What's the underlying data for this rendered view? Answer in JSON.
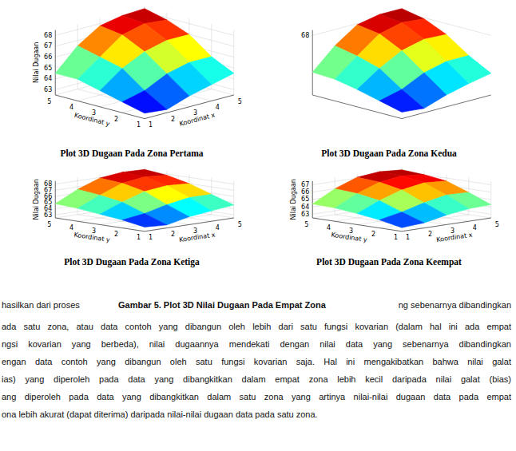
{
  "chart_data": [
    {
      "type": "surface",
      "title": "Plot 3D Dugaan Pada Zona Pertama",
      "x_label": "Koordinat x",
      "y_label": "Koordinat y",
      "z_label": "Nilai Dugaan",
      "grid": true,
      "x": [
        1,
        2,
        3,
        4,
        5
      ],
      "y": [
        1,
        2,
        3,
        4,
        5
      ],
      "z": [
        [
          63.0,
          62.8,
          63.5,
          64.0,
          64.5
        ],
        [
          63.5,
          64.0,
          65.0,
          65.5,
          65.5
        ],
        [
          64.0,
          65.5,
          66.5,
          67.0,
          67.0
        ],
        [
          64.5,
          66.0,
          67.5,
          68.0,
          67.8
        ],
        [
          64.5,
          66.5,
          67.8,
          68.2,
          68.3
        ]
      ],
      "xlim": [
        1,
        5
      ],
      "ylim": [
        1,
        5
      ],
      "zlim": [
        62.5,
        68.5
      ],
      "xticks": [
        1,
        2,
        3,
        4,
        5
      ],
      "yticks": [
        1,
        2,
        3,
        4,
        5
      ],
      "zticks": [
        63,
        64,
        65,
        66,
        67,
        68
      ]
    },
    {
      "type": "surface",
      "title": "Plot 3D Dugaan Pada Zona Kedua",
      "grid": true,
      "x": [
        1,
        2,
        3,
        4,
        5
      ],
      "y": [
        1,
        2,
        3,
        4,
        5
      ],
      "z": [
        [
          63.1,
          62.9,
          63.6,
          64.1,
          64.5
        ],
        [
          63.6,
          64.1,
          65.1,
          65.6,
          65.6
        ],
        [
          64.1,
          65.5,
          66.6,
          67.1,
          67.0
        ],
        [
          64.5,
          66.1,
          67.6,
          68.1,
          67.9
        ],
        [
          64.6,
          66.5,
          67.9,
          68.3,
          68.3
        ]
      ],
      "xlim": [
        1,
        5
      ],
      "ylim": [
        1,
        5
      ],
      "zlim": [
        62.5,
        68.5
      ],
      "xticks": [],
      "yticks": [],
      "zticks": [
        68
      ]
    },
    {
      "type": "surface",
      "title": "Plot 3D Dugaan Pada Zona Ketiga",
      "x_label": "Koordinat x",
      "y_label": "Koordinat y",
      "z_label": "Nilai Dugaan",
      "grid": true,
      "x": [
        1,
        2,
        3,
        4,
        5
      ],
      "y": [
        1,
        2,
        3,
        4,
        5
      ],
      "z": [
        [
          63.2,
          63.0,
          63.8,
          64.2,
          64.6
        ],
        [
          63.8,
          64.3,
          65.2,
          65.8,
          65.8
        ],
        [
          64.2,
          65.6,
          66.8,
          67.2,
          67.0
        ],
        [
          64.6,
          66.2,
          67.6,
          68.1,
          67.8
        ],
        [
          64.8,
          66.6,
          67.9,
          68.3,
          68.2
        ]
      ],
      "xlim": [
        1,
        5
      ],
      "ylim": [
        1,
        5
      ],
      "zlim": [
        62.5,
        68.5
      ],
      "xticks": [
        1,
        2,
        3,
        4,
        5
      ],
      "yticks": [
        1,
        2,
        3,
        4,
        5
      ],
      "zticks": [
        63,
        64,
        65,
        66,
        67,
        68
      ]
    },
    {
      "type": "surface",
      "title": "Plot 3D Dugaan Pada Zona Keempat",
      "x_label": "Koordinat x",
      "y_label": "Koordinat y",
      "z_label": "Nilai Dugaan",
      "grid": true,
      "x": [
        1,
        2,
        3,
        4,
        5
      ],
      "y": [
        1,
        2,
        3,
        4,
        5
      ],
      "z": [
        [
          63.0,
          63.2,
          63.8,
          64.2,
          64.3
        ],
        [
          63.6,
          64.2,
          65.0,
          65.6,
          65.5
        ],
        [
          64.0,
          65.3,
          66.3,
          66.8,
          66.6
        ],
        [
          64.3,
          65.8,
          66.9,
          67.3,
          67.0
        ],
        [
          64.4,
          66.0,
          67.1,
          67.4,
          67.2
        ]
      ],
      "xlim": [
        1,
        5
      ],
      "ylim": [
        1,
        5
      ],
      "zlim": [
        62.5,
        67.5
      ],
      "xticks": [
        1,
        2,
        3,
        4,
        5
      ],
      "yticks": [
        1,
        2,
        3,
        4,
        5
      ],
      "zticks": [
        63,
        64,
        65,
        66,
        67
      ]
    }
  ],
  "caption": "Gambar 5. Plot 3D Nilai Dugaan Pada Empat Zona",
  "paragraph": {
    "lead": "hasilkan dari proses",
    "trail": "ng sebenarnya dibandingkan",
    "lines": [
      "ada satu zona, atau data contoh yang dibangun oleh lebih dari satu fungsi kovarian (dalam hal ini ada empat",
      "ngsi kovarian yang berbeda), nilai dugaannya mendekati dengan nilai data yang sebenarnya dibandingkan",
      "engan data contoh yang dibangun oleh satu fungsi kovarian saja. Hal ini mengakibatkan bahwa nilai galat",
      "ias) yang diperoleh pada data yang dibangkitkan dalam empat zona lebih kecil daripada nilai galat (bias)",
      "ang diperoleh pada data yang dibangkitkan dalam satu zona yang artinya nilai-nilai dugaan data pada empat",
      "ona lebih akurat (dapat diterima) daripada nilai-nilai dugaan data pada satu zona."
    ]
  }
}
